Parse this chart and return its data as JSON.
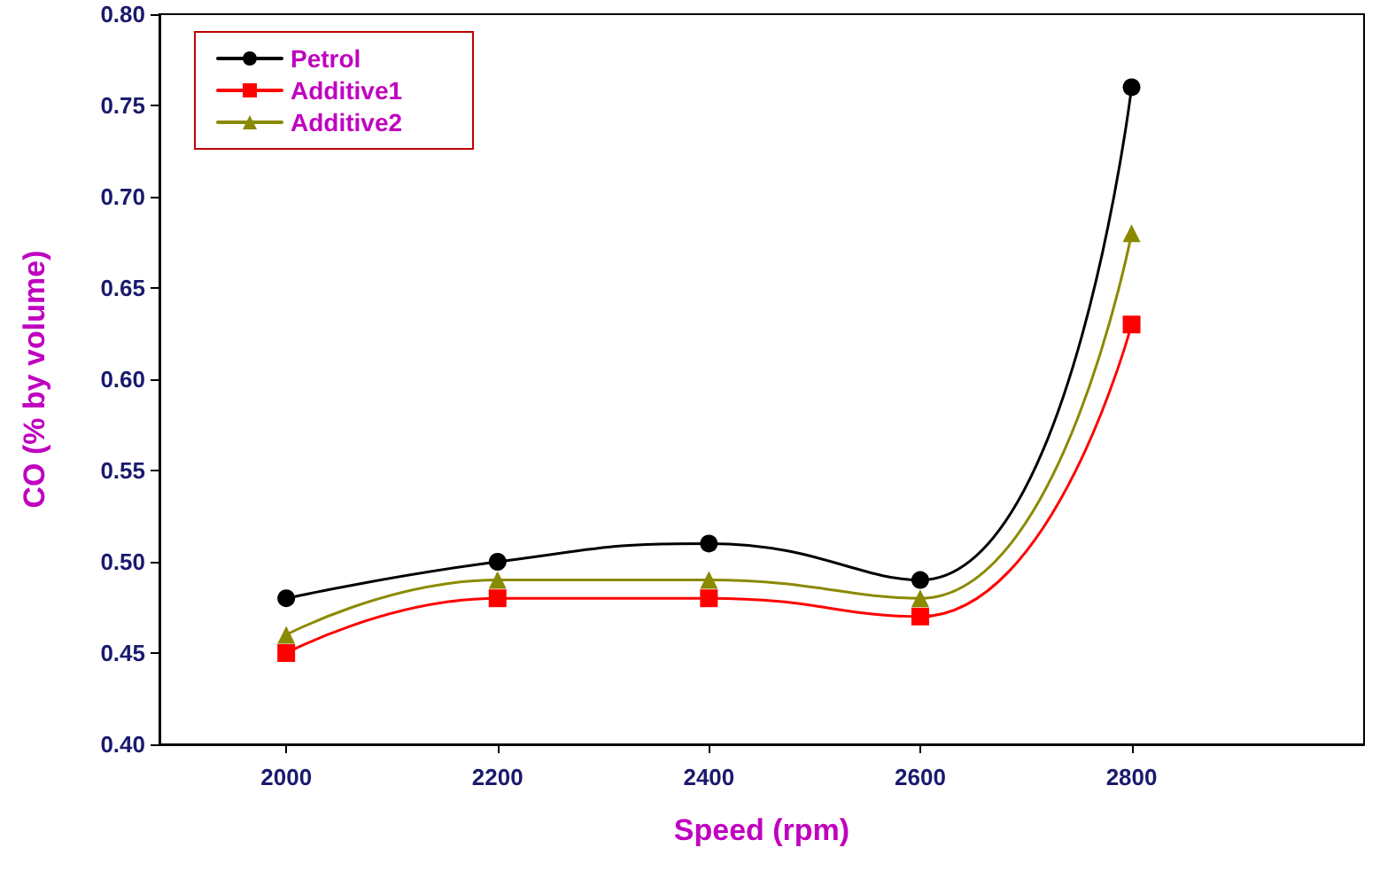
{
  "chart_data": {
    "type": "line",
    "xlabel": "Speed (rpm)",
    "ylabel": "CO (% by volume)",
    "x": [
      2000,
      2200,
      2400,
      2600,
      2800
    ],
    "series": [
      {
        "name": "Petrol",
        "color": "#000000",
        "marker": "circle",
        "values": [
          0.48,
          0.5,
          0.51,
          0.49,
          0.76
        ]
      },
      {
        "name": "Additive1",
        "color": "#ff0000",
        "marker": "square",
        "values": [
          0.45,
          0.48,
          0.48,
          0.47,
          0.63
        ]
      },
      {
        "name": "Additive2",
        "color": "#8a8a00",
        "marker": "triangle",
        "values": [
          0.46,
          0.49,
          0.49,
          0.48,
          0.68
        ]
      }
    ],
    "xlim": [
      1880,
      3020
    ],
    "xticks": [
      2000,
      2200,
      2400,
      2600,
      2800
    ],
    "ylim": [
      0.4,
      0.8
    ],
    "yticks": [
      {
        "value": 0.4,
        "label": "0.40"
      },
      0.45,
      {
        "value": 0.5,
        "label": "0.50"
      },
      0.55,
      {
        "value": 0.6,
        "label": "0.60"
      },
      0.65,
      {
        "value": 0.7,
        "label": "0.70"
      },
      0.75,
      {
        "value": 0.8,
        "label": "0.80"
      }
    ],
    "grid": false,
    "legend": "top left",
    "line_style": "solid"
  }
}
